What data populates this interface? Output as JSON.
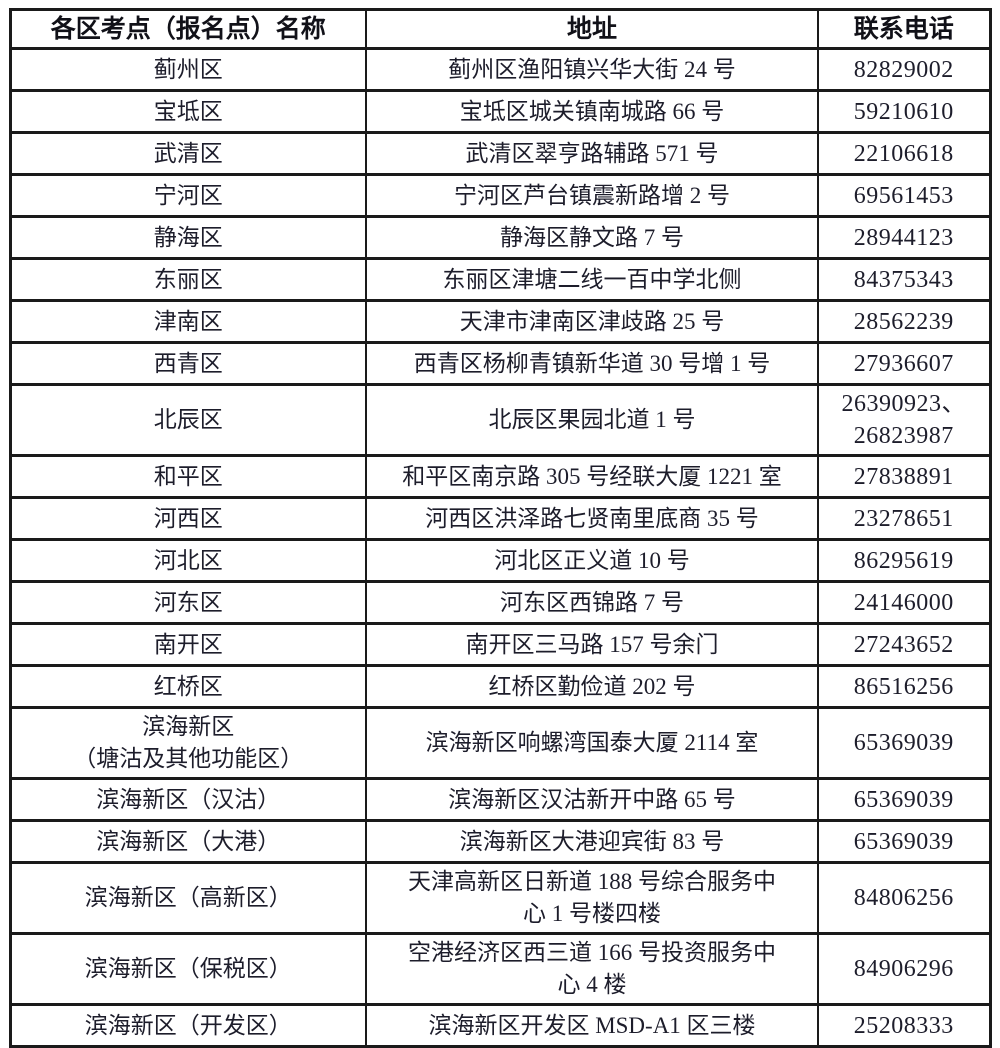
{
  "colors": {
    "text": "#1d1d2b",
    "border": "#1a1a1a",
    "background": "#ffffff"
  },
  "table": {
    "columns": [
      "各区考点（报名点）名称",
      "地址",
      "联系电话"
    ],
    "rows": [
      {
        "name": "蓟州区",
        "address": "蓟州区渔阳镇兴华大街 24 号",
        "phone": "82829002"
      },
      {
        "name": "宝坻区",
        "address": "宝坻区城关镇南城路 66 号",
        "phone": "59210610"
      },
      {
        "name": "武清区",
        "address": "武清区翠亨路辅路 571 号",
        "phone": "22106618"
      },
      {
        "name": "宁河区",
        "address": "宁河区芦台镇震新路增 2 号",
        "phone": "69561453"
      },
      {
        "name": "静海区",
        "address": "静海区静文路 7 号",
        "phone": "28944123"
      },
      {
        "name": "东丽区",
        "address": "东丽区津塘二线一百中学北侧",
        "phone": "84375343"
      },
      {
        "name": "津南区",
        "address": "天津市津南区津歧路 25 号",
        "phone": "28562239"
      },
      {
        "name": "西青区",
        "address": "西青区杨柳青镇新华道 30 号增 1 号",
        "phone": "27936607"
      },
      {
        "name": "北辰区",
        "address": "北辰区果园北道 1 号",
        "phone": "26390923、\n26823987"
      },
      {
        "name": "和平区",
        "address": "和平区南京路 305 号经联大厦 1221 室",
        "phone": "27838891"
      },
      {
        "name": "河西区",
        "address": "河西区洪泽路七贤南里底商 35 号",
        "phone": "23278651"
      },
      {
        "name": "河北区",
        "address": "河北区正义道 10 号",
        "phone": "86295619"
      },
      {
        "name": "河东区",
        "address": "河东区西锦路 7 号",
        "phone": "24146000"
      },
      {
        "name": "南开区",
        "address": "南开区三马路 157 号余门",
        "phone": "27243652"
      },
      {
        "name": "红桥区",
        "address": "红桥区勤俭道 202 号",
        "phone": "86516256"
      },
      {
        "name": "滨海新区\n（塘沽及其他功能区）",
        "address": "滨海新区响螺湾国泰大厦 2114 室",
        "phone": "65369039"
      },
      {
        "name": "滨海新区（汉沽）",
        "address": "滨海新区汉沽新开中路 65 号",
        "phone": "65369039"
      },
      {
        "name": "滨海新区（大港）",
        "address": "滨海新区大港迎宾街 83 号",
        "phone": "65369039"
      },
      {
        "name": "滨海新区（高新区）",
        "address": "天津高新区日新道 188 号综合服务中\n心 1 号楼四楼",
        "phone": "84806256"
      },
      {
        "name": "滨海新区（保税区）",
        "address": "空港经济区西三道 166 号投资服务中\n心 4 楼",
        "phone": "84906296"
      },
      {
        "name": "滨海新区（开发区）",
        "address": "滨海新区开发区 MSD-A1 区三楼",
        "phone": "25208333"
      }
    ]
  }
}
